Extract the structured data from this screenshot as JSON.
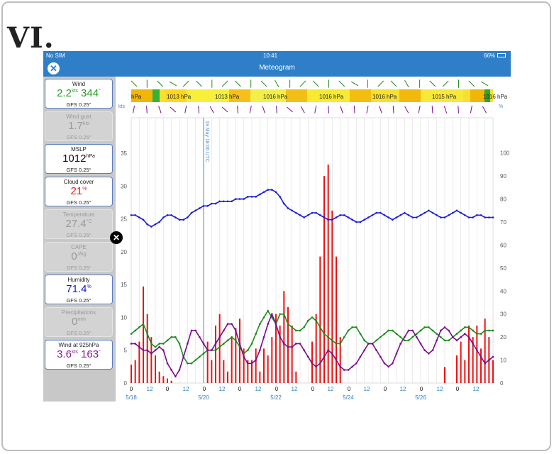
{
  "figure_label": "VI.",
  "status_bar": {
    "carrier": "No SIM",
    "time": "10:41",
    "battery": "66%"
  },
  "nav": {
    "title": "Meteogram",
    "close_icon": "close-icon"
  },
  "sidebar": {
    "cards": [
      {
        "title": "Wind",
        "value": "2.2",
        "unit": "kts",
        "value2": "344",
        "unit2": "°",
        "model": "GFS 0.25°",
        "active": true,
        "color": "#2a9a2a"
      },
      {
        "title": "Wind gust",
        "value": "1.7",
        "unit": "kts",
        "model": "GFS 0.25°",
        "active": false,
        "color": "#999999"
      },
      {
        "title": "MSLP",
        "value": "1012",
        "unit": "hPa",
        "model": "GFS 0.25°",
        "active": true,
        "color": "#111111"
      },
      {
        "title": "Cloud cover",
        "value": "21",
        "unit": "%",
        "model": "GFS 0.25°",
        "active": true,
        "color": "#e02020"
      },
      {
        "title": "Temperature",
        "value": "27.4",
        "unit": "°C",
        "model": "GFS 0.25°",
        "active": false,
        "color": "#999999"
      },
      {
        "title": "CAPE",
        "value": "0",
        "unit": "J/kg",
        "model": "GFS 0.25°",
        "active": false,
        "color": "#999999"
      },
      {
        "title": "Humidity",
        "value": "71.4",
        "unit": "%",
        "model": "GFS 0.25°",
        "active": true,
        "color": "#1a1ad0"
      },
      {
        "title": "Precipitations",
        "value": "0",
        "unit": "mm",
        "model": "GFS 0.25°",
        "active": false,
        "color": "#999999"
      },
      {
        "title": "Wind at 925hPa",
        "value": "3.6",
        "unit": "kts",
        "value2": "163",
        "unit2": "°",
        "model": "GFS 0.25°",
        "active": true,
        "color": "#8a1a9a"
      }
    ]
  },
  "chart": {
    "left_unit": "kts",
    "right_unit": "%",
    "pressure_labels": [
      "hPa",
      "1013 hPa",
      "1013 hPa",
      "1016 hPa",
      "1016 hPa",
      "1016 hPa",
      "1015 hPa",
      "1016 hPa"
    ],
    "marker_label": "19 May 18:00 UTC",
    "colors": {
      "wind": "#1e8a1e",
      "humidity": "#1a1ad8",
      "wind925": "#7a0a8a",
      "cloud": "#ee1111",
      "marker": "#4a8ad0"
    }
  },
  "chart_data": {
    "type": "line",
    "x_tick_labels": [
      "0",
      "12",
      "0",
      "12",
      "0",
      "12",
      "0",
      "12",
      "0",
      "12",
      "0",
      "12",
      "0",
      "12",
      "0",
      "12",
      "0",
      "12",
      "0",
      "12"
    ],
    "date_labels": [
      "5/18",
      "5/20",
      "5/22",
      "5/24",
      "5/26"
    ],
    "left_axis": {
      "ticks": [
        0,
        5,
        10,
        15,
        20,
        25,
        30,
        35
      ],
      "ylim": [
        0,
        37.5
      ]
    },
    "right_axis": {
      "ticks": [
        0,
        10,
        20,
        30,
        40,
        50,
        60,
        70,
        80,
        90,
        100
      ],
      "ylim": [
        0,
        107
      ]
    },
    "x_hours": [
      0,
      6,
      12,
      18,
      24,
      30,
      36,
      42,
      48,
      54,
      60,
      66,
      72,
      78,
      84,
      90,
      96,
      102,
      108,
      114,
      120,
      126,
      132,
      138,
      144,
      150,
      156,
      162,
      168,
      174,
      180,
      186,
      192,
      198,
      204,
      210,
      216,
      222,
      228,
      234,
      240,
      246,
      252,
      258,
      264,
      270,
      276,
      282,
      288,
      294,
      300,
      306,
      312,
      318,
      324,
      330,
      336,
      342,
      348,
      354,
      360,
      366,
      372,
      378,
      384,
      390,
      396,
      402,
      408,
      414,
      420,
      426,
      432,
      438,
      444,
      450,
      456,
      462,
      468,
      474,
      480,
      486,
      492,
      498,
      504,
      510,
      516,
      522,
      528,
      534,
      540
    ],
    "series": [
      {
        "axis": "right",
        "values": [
          73,
          73,
          72,
          71,
          69,
          68,
          69,
          70,
          72,
          73,
          73,
          72,
          71,
          71,
          72,
          74,
          75,
          76,
          77,
          77,
          78,
          78,
          79,
          79,
          79,
          79,
          80,
          80,
          80,
          81,
          81,
          81,
          82,
          83,
          84,
          84,
          83,
          81,
          78,
          76,
          75,
          74,
          73,
          72,
          73,
          74,
          74,
          73,
          72,
          71,
          71,
          72,
          73,
          73,
          72,
          71,
          70,
          70,
          71,
          72,
          73,
          74,
          74,
          73,
          72,
          71,
          72,
          73,
          74,
          73,
          72,
          72,
          73,
          74,
          75,
          74,
          73,
          72,
          72,
          73,
          74,
          75,
          74,
          73,
          72,
          72,
          73,
          73,
          72,
          72,
          72
        ]
      },
      {
        "axis": "left",
        "values": [
          7.5,
          8,
          8.5,
          9,
          7.5,
          6,
          5.5,
          6,
          6,
          6.5,
          7,
          7,
          6,
          4,
          3,
          3,
          3.5,
          4,
          4.5,
          5,
          5,
          5,
          5.5,
          6,
          6.5,
          7,
          6.5,
          5.5,
          4.5,
          5,
          6,
          7.5,
          9,
          10,
          11,
          10,
          9,
          10.5,
          10.5,
          9,
          8.5,
          8,
          8,
          8.5,
          9.5,
          10,
          9.5,
          8.5,
          7.5,
          7,
          6.5,
          6,
          6,
          7,
          8,
          8.5,
          8.5,
          7.5,
          6.5,
          6,
          6,
          6.5,
          7,
          7.5,
          8,
          8,
          7.5,
          7,
          6.5,
          6.5,
          7,
          7.5,
          8,
          8.5,
          8.5,
          8,
          7.5,
          7,
          6.5,
          6.5,
          7,
          7.5,
          8,
          8.5,
          8.5,
          8,
          7.5,
          7.5,
          8,
          8,
          8
        ]
      },
      {
        "axis": "left",
        "values": [
          6,
          6,
          5.5,
          5,
          5,
          4.5,
          5,
          5.5,
          5,
          3,
          2,
          1,
          2,
          4,
          6,
          8,
          8,
          7,
          6,
          5,
          5,
          6,
          7,
          8,
          9,
          9,
          8,
          6,
          4,
          3,
          3,
          3.5,
          5,
          7,
          9,
          10.5,
          9,
          7,
          6,
          5.5,
          5.5,
          6,
          6,
          5,
          4,
          3,
          2.5,
          3,
          4,
          5,
          4.5,
          3.5,
          2.5,
          2,
          2,
          2.5,
          3,
          4,
          5,
          6,
          6,
          5,
          4,
          3,
          2.5,
          3,
          4.5,
          6,
          7,
          8,
          8,
          7,
          6,
          5,
          4.5,
          5,
          6.5,
          8,
          8.5,
          8,
          7,
          6.5,
          7,
          7.5,
          7,
          6,
          5,
          4,
          3,
          3.5,
          4
        ]
      },
      {
        "axis": "right",
        "values": [
          8,
          10,
          18,
          42,
          30,
          20,
          12,
          5,
          3,
          2,
          1,
          0,
          0,
          0,
          0,
          0,
          0,
          0,
          0,
          18,
          10,
          25,
          30,
          10,
          5,
          20,
          24,
          28,
          15,
          10,
          10,
          15,
          5,
          15,
          12,
          20,
          30,
          25,
          40,
          33,
          25,
          5,
          0,
          0,
          0,
          18,
          30,
          55,
          90,
          95,
          75,
          55,
          20,
          0,
          0,
          0,
          0,
          0,
          0,
          0,
          0,
          0,
          0,
          0,
          0,
          0,
          0,
          0,
          0,
          0,
          0,
          0,
          0,
          0,
          0,
          0,
          0,
          0,
          7,
          0,
          0,
          12,
          18,
          10,
          25,
          20,
          25,
          15,
          28,
          20,
          10
        ]
      }
    ],
    "series_note": "series order: humidity, wind, wind at 925hPa, cloud cover"
  }
}
